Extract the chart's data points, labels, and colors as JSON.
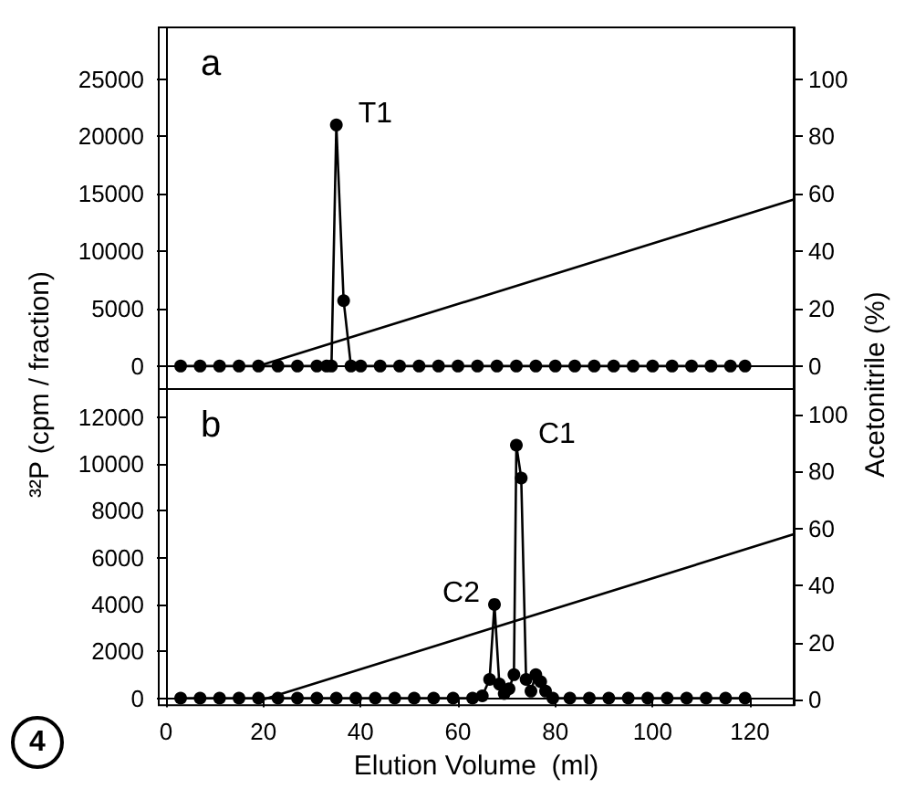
{
  "chart_data": [
    {
      "type": "line",
      "ylabel": "³²P  (cpm / fraction)",
      "y2label": "Acetonitrile  (%)",
      "annotations": [
        "a",
        {
          "text": "T1",
          "x": 35,
          "y": 21000
        }
      ],
      "marker": "circle",
      "tick_labels": "y",
      "xlim": [
        -1.5,
        129
      ],
      "ylim": [
        -2000,
        29500
      ],
      "yticks": [
        0,
        5000,
        10000,
        15000,
        20000,
        25000
      ],
      "y2lim": [
        -8,
        118
      ],
      "y2ticks": [
        0,
        20,
        40,
        60,
        80,
        100
      ],
      "series": [
        {
          "color": "#000000",
          "x": [
            3,
            7,
            11,
            15,
            19,
            23,
            27,
            31,
            33,
            34,
            35,
            36.5,
            38,
            40,
            44,
            48,
            52,
            56,
            60,
            64,
            68,
            72,
            76,
            80,
            84,
            88,
            92,
            96,
            100,
            104,
            108,
            112,
            116,
            119
          ],
          "values": [
            0,
            0,
            0,
            0,
            0,
            0,
            0,
            0,
            0,
            0,
            21000,
            5700,
            0,
            0,
            0,
            0,
            0,
            0,
            0,
            0,
            0,
            0,
            0,
            0,
            0,
            0,
            0,
            0,
            0,
            0,
            0,
            0,
            0,
            0
          ]
        },
        {
          "color": "#000000",
          "axis": "y2",
          "marker": "none",
          "x": [
            19,
            129
          ],
          "values": [
            0,
            58
          ]
        }
      ]
    },
    {
      "type": "line",
      "xlabel": "Elution Volume  (ml)",
      "annotations": [
        "b",
        "4",
        {
          "text": "C1",
          "x": 72,
          "y": 10800
        },
        {
          "text": "C2",
          "x": 67.5,
          "y": 4000
        }
      ],
      "marker": "circle",
      "xlim": [
        -1.5,
        129
      ],
      "xticks": [
        0,
        20,
        40,
        60,
        80,
        100,
        120
      ],
      "ylim": [
        -300,
        13200
      ],
      "yticks": [
        0,
        2000,
        4000,
        6000,
        8000,
        10000,
        12000
      ],
      "y2lim": [
        -2,
        109
      ],
      "y2ticks": [
        0,
        20,
        40,
        60,
        80,
        100
      ],
      "series": [
        {
          "color": "#000000",
          "x": [
            3,
            7,
            11,
            15,
            19,
            23,
            27,
            31,
            35,
            39,
            43,
            47,
            51,
            55,
            59,
            63,
            65,
            66.5,
            67.5,
            68.5,
            69.5,
            70.5,
            71.5,
            72,
            73,
            74,
            75,
            76,
            77,
            78,
            79.5,
            83,
            87,
            91,
            95,
            99,
            103,
            107,
            111,
            115,
            119
          ],
          "values": [
            0,
            0,
            0,
            0,
            0,
            0,
            0,
            0,
            0,
            0,
            0,
            0,
            0,
            0,
            0,
            0,
            100,
            800,
            4000,
            600,
            200,
            400,
            1000,
            10800,
            9400,
            800,
            300,
            1000,
            700,
            300,
            0,
            0,
            0,
            0,
            0,
            0,
            0,
            0,
            0,
            0,
            0
          ]
        },
        {
          "color": "#000000",
          "axis": "y2",
          "marker": "none",
          "x": [
            20,
            129
          ],
          "values": [
            0,
            58
          ]
        }
      ]
    }
  ]
}
